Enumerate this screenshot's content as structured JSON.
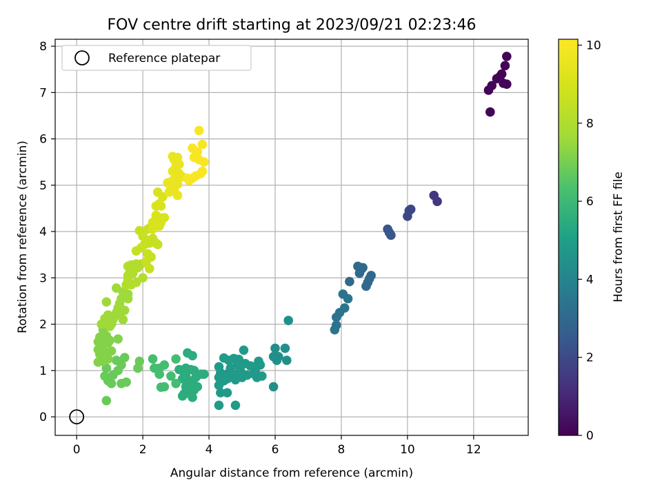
{
  "chart_data": {
    "type": "scatter",
    "title": "FOV centre drift starting at 2023/09/21 02:23:46",
    "xlabel": "Angular distance from reference (arcmin)",
    "ylabel": "Rotation from reference (arcmin)",
    "xlim": [
      -0.65,
      13.65
    ],
    "ylim": [
      -0.4,
      8.15
    ],
    "x_ticks": [
      0,
      2,
      4,
      6,
      8,
      10,
      12
    ],
    "y_ticks": [
      0,
      1,
      2,
      3,
      4,
      5,
      6,
      7,
      8
    ],
    "grid": true,
    "legend": {
      "placement": "top-left",
      "entries": [
        "Reference platepar"
      ]
    },
    "reference_point": {
      "x": 0,
      "y": 0,
      "label": "Reference platepar"
    },
    "colorbar": {
      "label": "Hours from first FF file",
      "colormap": "viridis",
      "range": [
        0,
        10.15
      ],
      "ticks": [
        0,
        2,
        4,
        6,
        8,
        10
      ]
    },
    "point_groups": [
      {
        "hours": 0.1,
        "points": [
          [
            13.0,
            7.78
          ],
          [
            12.95,
            7.58
          ],
          [
            12.85,
            7.4
          ],
          [
            12.8,
            7.35
          ],
          [
            12.7,
            7.3
          ],
          [
            12.55,
            7.15
          ],
          [
            12.45,
            7.05
          ],
          [
            12.9,
            7.2
          ],
          [
            13.0,
            7.18
          ],
          [
            12.5,
            6.58
          ]
        ]
      },
      {
        "hours": 1.4,
        "points": [
          [
            10.8,
            4.78
          ],
          [
            10.9,
            4.65
          ]
        ]
      },
      {
        "hours": 1.9,
        "points": [
          [
            10.1,
            4.48
          ],
          [
            10.05,
            4.45
          ],
          [
            10.0,
            4.33
          ]
        ]
      },
      {
        "hours": 2.4,
        "points": [
          [
            9.4,
            4.05
          ],
          [
            9.45,
            3.98
          ],
          [
            9.5,
            3.92
          ]
        ]
      },
      {
        "hours": 3.0,
        "points": [
          [
            8.5,
            3.25
          ],
          [
            8.65,
            3.22
          ],
          [
            8.6,
            3.18
          ],
          [
            8.55,
            3.1
          ],
          [
            8.9,
            3.05
          ],
          [
            8.85,
            2.98
          ],
          [
            8.8,
            2.9
          ],
          [
            8.75,
            2.82
          ],
          [
            8.25,
            2.92
          ]
        ]
      },
      {
        "hours": 3.4,
        "points": [
          [
            8.05,
            2.65
          ],
          [
            8.2,
            2.55
          ],
          [
            8.1,
            2.35
          ],
          [
            7.95,
            2.25
          ],
          [
            7.85,
            2.15
          ],
          [
            7.85,
            1.98
          ],
          [
            7.8,
            1.88
          ]
        ]
      },
      {
        "hours": 4.4,
        "points": [
          [
            6.4,
            2.08
          ],
          [
            6.0,
            1.48
          ],
          [
            6.3,
            1.48
          ],
          [
            6.1,
            1.3
          ],
          [
            5.95,
            1.3
          ],
          [
            6.05,
            1.22
          ],
          [
            6.35,
            1.22
          ],
          [
            5.95,
            0.65
          ]
        ]
      },
      {
        "hours": 4.8,
        "points": [
          [
            5.05,
            1.44
          ],
          [
            4.45,
            1.27
          ],
          [
            4.6,
            1.22
          ],
          [
            4.75,
            1.26
          ],
          [
            4.9,
            1.24
          ],
          [
            5.1,
            1.15
          ],
          [
            5.25,
            1.1
          ],
          [
            5.35,
            1.08
          ],
          [
            5.5,
            1.2
          ],
          [
            5.55,
            1.12
          ],
          [
            5.4,
            0.98
          ],
          [
            5.35,
            0.93
          ],
          [
            5.6,
            0.88
          ],
          [
            5.45,
            0.85
          ],
          [
            4.3,
            1.08
          ],
          [
            4.35,
            0.95
          ],
          [
            4.3,
            0.85
          ],
          [
            4.45,
            0.78
          ],
          [
            4.6,
            0.95
          ],
          [
            4.65,
            1.05
          ],
          [
            4.55,
            0.82
          ],
          [
            4.75,
            0.92
          ],
          [
            4.85,
            1.12
          ],
          [
            4.95,
            1.0
          ],
          [
            4.9,
            0.88
          ],
          [
            4.8,
            0.8
          ],
          [
            5.0,
            0.85
          ],
          [
            5.15,
            0.9
          ],
          [
            4.3,
            0.68
          ],
          [
            4.35,
            0.52
          ],
          [
            4.55,
            0.52
          ],
          [
            4.3,
            0.25
          ],
          [
            4.8,
            0.25
          ]
        ]
      },
      {
        "hours": 5.5,
        "points": [
          [
            3.35,
            1.38
          ],
          [
            3.5,
            1.32
          ],
          [
            3.3,
            1.05
          ],
          [
            3.45,
            1.02
          ],
          [
            3.25,
            0.95
          ],
          [
            3.55,
            1.0
          ],
          [
            3.6,
            0.85
          ],
          [
            3.75,
            0.92
          ],
          [
            3.85,
            0.92
          ],
          [
            3.2,
            0.82
          ],
          [
            3.4,
            0.78
          ],
          [
            3.5,
            0.72
          ],
          [
            3.3,
            0.65
          ],
          [
            3.65,
            0.65
          ],
          [
            3.55,
            0.58
          ],
          [
            3.25,
            0.5
          ],
          [
            3.2,
            0.45
          ],
          [
            3.45,
            0.48
          ],
          [
            3.5,
            0.42
          ],
          [
            3.1,
            1.02
          ],
          [
            3.3,
            0.88
          ]
        ]
      },
      {
        "hours": 6.2,
        "points": [
          [
            3.0,
            1.25
          ],
          [
            2.65,
            1.12
          ],
          [
            2.85,
            0.88
          ],
          [
            3.0,
            0.72
          ],
          [
            2.55,
            0.64
          ],
          [
            2.65,
            0.65
          ],
          [
            2.3,
            1.25
          ],
          [
            2.35,
            1.05
          ],
          [
            2.5,
            1.05
          ],
          [
            2.5,
            0.92
          ]
        ]
      },
      {
        "hours": 6.8,
        "points": [
          [
            1.45,
            1.28
          ],
          [
            1.35,
            1.12
          ],
          [
            1.2,
            1.22
          ],
          [
            1.25,
            1.0
          ],
          [
            1.1,
            0.9
          ],
          [
            1.0,
            0.82
          ],
          [
            1.05,
            0.72
          ],
          [
            1.35,
            0.72
          ],
          [
            1.5,
            0.75
          ],
          [
            1.9,
            1.2
          ],
          [
            1.85,
            1.05
          ],
          [
            0.9,
            1.05
          ],
          [
            0.85,
            0.88
          ],
          [
            0.95,
            0.78
          ],
          [
            0.9,
            0.35
          ]
        ]
      },
      {
        "hours": 7.2,
        "points": [
          [
            0.65,
            1.18
          ],
          [
            0.7,
            1.35
          ],
          [
            0.65,
            1.45
          ],
          [
            0.8,
            1.2
          ],
          [
            0.95,
            1.25
          ],
          [
            0.9,
            1.4
          ],
          [
            1.05,
            1.42
          ],
          [
            0.8,
            1.58
          ],
          [
            0.75,
            1.55
          ],
          [
            0.95,
            1.6
          ],
          [
            0.65,
            1.62
          ],
          [
            0.7,
            1.72
          ],
          [
            0.9,
            1.75
          ],
          [
            1.0,
            1.65
          ],
          [
            1.25,
            1.68
          ],
          [
            0.8,
            1.88
          ]
        ]
      },
      {
        "hours": 7.6,
        "points": [
          [
            0.75,
            2.0
          ],
          [
            0.85,
            2.12
          ],
          [
            0.95,
            2.2
          ],
          [
            0.9,
            2.05
          ],
          [
            1.05,
            2.0
          ],
          [
            1.1,
            2.1
          ],
          [
            1.0,
            1.95
          ],
          [
            0.9,
            2.48
          ],
          [
            1.2,
            2.25
          ],
          [
            1.3,
            2.2
          ],
          [
            1.4,
            2.1
          ],
          [
            1.25,
            2.35
          ],
          [
            1.3,
            2.45
          ],
          [
            1.35,
            2.55
          ],
          [
            1.2,
            2.78
          ],
          [
            1.4,
            2.7
          ],
          [
            1.55,
            2.65
          ],
          [
            1.55,
            2.55
          ],
          [
            1.45,
            2.3
          ]
        ]
      },
      {
        "hours": 8.1,
        "points": [
          [
            1.5,
            2.85
          ],
          [
            1.55,
            2.95
          ],
          [
            1.65,
            2.85
          ],
          [
            1.8,
            2.9
          ],
          [
            1.55,
            3.05
          ],
          [
            1.6,
            3.1
          ],
          [
            1.55,
            3.25
          ],
          [
            1.65,
            3.28
          ],
          [
            1.8,
            3.3
          ],
          [
            1.85,
            3.22
          ],
          [
            1.95,
            3.3
          ],
          [
            1.7,
            3.1
          ],
          [
            2.0,
            3.0
          ]
        ]
      },
      {
        "hours": 8.6,
        "points": [
          [
            1.8,
            3.58
          ],
          [
            1.95,
            3.65
          ],
          [
            2.05,
            3.72
          ],
          [
            2.2,
            3.75
          ],
          [
            2.15,
            3.52
          ],
          [
            2.25,
            3.45
          ],
          [
            2.1,
            3.35
          ],
          [
            2.2,
            3.2
          ],
          [
            1.9,
            4.02
          ],
          [
            2.0,
            3.9
          ],
          [
            2.1,
            3.82
          ],
          [
            2.3,
            3.85
          ],
          [
            2.4,
            3.75
          ],
          [
            2.45,
            3.72
          ],
          [
            2.15,
            4.05
          ],
          [
            2.25,
            4.1
          ]
        ]
      },
      {
        "hours": 9.1,
        "points": [
          [
            2.3,
            4.2
          ],
          [
            2.4,
            4.35
          ],
          [
            2.5,
            4.3
          ],
          [
            2.55,
            4.2
          ],
          [
            2.65,
            4.3
          ],
          [
            2.4,
            4.55
          ],
          [
            2.5,
            4.6
          ],
          [
            2.45,
            4.85
          ],
          [
            2.55,
            4.55
          ],
          [
            2.6,
            4.75
          ],
          [
            2.3,
            4.05
          ],
          [
            2.5,
            4.12
          ]
        ]
      },
      {
        "hours": 9.6,
        "points": [
          [
            2.8,
            4.85
          ],
          [
            2.85,
            4.92
          ],
          [
            2.95,
            4.88
          ],
          [
            3.05,
            4.78
          ],
          [
            2.75,
            5.05
          ],
          [
            2.9,
            5.1
          ],
          [
            3.0,
            5.18
          ],
          [
            3.1,
            5.25
          ],
          [
            3.2,
            5.18
          ],
          [
            3.05,
            5.02
          ],
          [
            2.9,
            5.3
          ],
          [
            3.0,
            5.4
          ],
          [
            3.1,
            5.45
          ],
          [
            2.95,
            5.55
          ],
          [
            3.05,
            5.6
          ],
          [
            2.9,
            5.62
          ]
        ]
      },
      {
        "hours": 10.0,
        "points": [
          [
            3.4,
            5.1
          ],
          [
            3.5,
            5.15
          ],
          [
            3.6,
            5.2
          ],
          [
            3.75,
            5.25
          ],
          [
            3.8,
            5.3
          ],
          [
            3.85,
            5.5
          ],
          [
            3.7,
            5.55
          ],
          [
            3.55,
            5.6
          ],
          [
            3.5,
            5.8
          ],
          [
            3.65,
            5.72
          ],
          [
            3.8,
            5.88
          ],
          [
            3.7,
            6.18
          ],
          [
            3.35,
            5.15
          ]
        ]
      }
    ]
  }
}
